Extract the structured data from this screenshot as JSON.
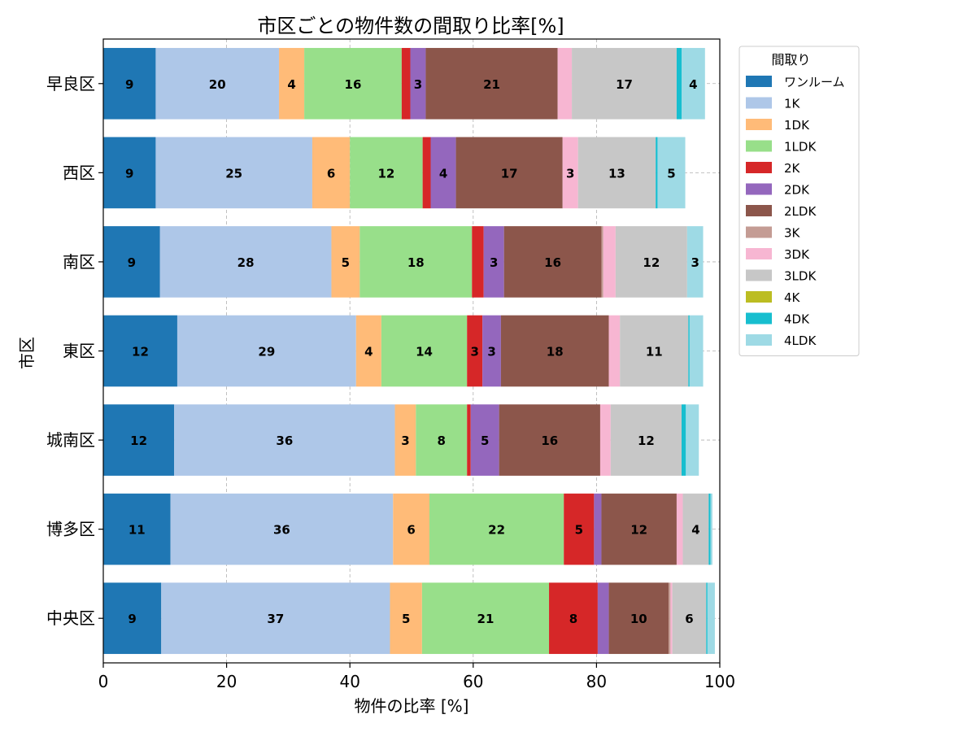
{
  "chart_data": {
    "type": "bar",
    "orientation": "horizontal",
    "stacked": true,
    "title": "市区ごとの物件数の間取り比率[%]",
    "xlabel": "物件の比率 [%]",
    "ylabel": "市区",
    "xlim": [
      0,
      100
    ],
    "xticks": [
      "0",
      "20",
      "40",
      "60",
      "80",
      "100"
    ],
    "grid": true,
    "legend_title": "間取り",
    "legend_position": "outside-top-right",
    "categories": [
      "早良区",
      "西区",
      "南区",
      "東区",
      "城南区",
      "博多区",
      "中央区"
    ],
    "series": [
      {
        "name": "ワンルーム",
        "color": "#1f77b4",
        "values": [
          8.5,
          8.5,
          9.2,
          12.0,
          11.5,
          10.9,
          9.4
        ]
      },
      {
        "name": "1K",
        "color": "#aec7e8",
        "values": [
          20.0,
          25.4,
          27.8,
          29.0,
          35.8,
          36.1,
          37.1
        ]
      },
      {
        "name": "1DK",
        "color": "#ffbb78",
        "values": [
          4.1,
          6.1,
          4.6,
          4.1,
          3.4,
          5.9,
          5.2
        ]
      },
      {
        "name": "1LDK",
        "color": "#98df8a",
        "values": [
          15.8,
          11.8,
          18.2,
          13.9,
          8.3,
          21.8,
          20.6
        ]
      },
      {
        "name": "2K",
        "color": "#d62728",
        "values": [
          1.4,
          1.3,
          1.9,
          2.5,
          0.6,
          4.9,
          7.9
        ]
      },
      {
        "name": "2DK",
        "color": "#9467bd",
        "values": [
          2.5,
          4.1,
          3.3,
          3.0,
          4.6,
          1.2,
          1.8
        ]
      },
      {
        "name": "2LDK",
        "color": "#8c564b",
        "values": [
          21.4,
          17.3,
          15.8,
          17.5,
          16.4,
          12.2,
          9.7
        ]
      },
      {
        "name": "3K",
        "color": "#c49c94",
        "values": [
          0.0,
          0.0,
          0.3,
          0.0,
          0.0,
          0.0,
          0.3
        ]
      },
      {
        "name": "3DK",
        "color": "#f7b6d2",
        "values": [
          2.3,
          2.5,
          2.0,
          1.8,
          1.7,
          1.0,
          0.3
        ]
      },
      {
        "name": "3LDK",
        "color": "#c7c7c7",
        "values": [
          17.0,
          12.6,
          11.6,
          11.1,
          11.5,
          4.2,
          5.5
        ]
      },
      {
        "name": "4K",
        "color": "#bcbd22",
        "values": [
          0.0,
          0.0,
          0.0,
          0.0,
          0.0,
          0.0,
          0.0
        ]
      },
      {
        "name": "4DK",
        "color": "#17becf",
        "values": [
          0.8,
          0.3,
          0.0,
          0.2,
          0.7,
          0.3,
          0.2
        ]
      },
      {
        "name": "4LDK",
        "color": "#9edae5",
        "values": [
          3.8,
          4.5,
          2.6,
          2.2,
          2.1,
          0.3,
          1.2
        ]
      }
    ]
  }
}
